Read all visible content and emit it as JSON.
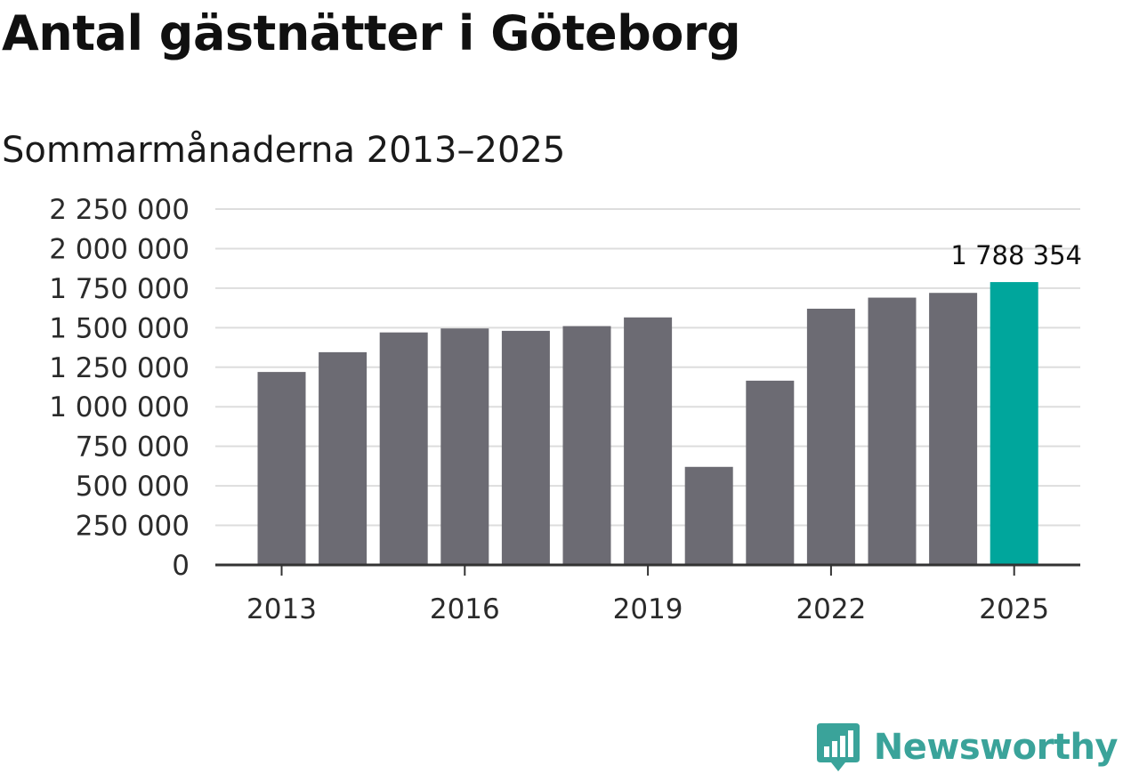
{
  "title": "Antal gästnätter i Göteborg",
  "subtitle": "Sommarmånaderna 2013–2025",
  "brand": {
    "name": "Newsworthy",
    "color": "#3aa39a",
    "icon": "bar-chart-bubble-icon"
  },
  "colors": {
    "bar": "#6c6b73",
    "highlight": "#00a69c",
    "grid": "#dddddd",
    "axis": "#333333"
  },
  "chart_data": {
    "type": "bar",
    "categories": [
      "2013",
      "2014",
      "2015",
      "2016",
      "2017",
      "2018",
      "2019",
      "2020",
      "2021",
      "2022",
      "2023",
      "2024",
      "2025"
    ],
    "values": [
      1220000,
      1345000,
      1470000,
      1495000,
      1480000,
      1510000,
      1565000,
      620000,
      1165000,
      1620000,
      1690000,
      1720000,
      1788354
    ],
    "highlight_index": 12,
    "x_tick_labels": [
      "2013",
      "2016",
      "2019",
      "2022",
      "2025"
    ],
    "y_ticks": [
      0,
      250000,
      500000,
      750000,
      1000000,
      1250000,
      1500000,
      1750000,
      2000000,
      2250000
    ],
    "y_tick_labels": [
      "0",
      "250 000",
      "500 000",
      "750 000",
      "1 000 000",
      "1 250 000",
      "1 500 000",
      "1 750 000",
      "2 000 000",
      "2 250 000"
    ],
    "ylim": [
      0,
      2250000
    ],
    "data_label": "1 788 354",
    "grid": true,
    "legend": "none"
  }
}
